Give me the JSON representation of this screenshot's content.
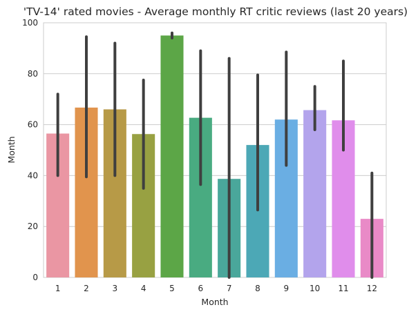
{
  "chart_data": {
    "type": "bar",
    "title": "'TV-14' rated movies - Average monthly RT critic reviews (last 20 years)",
    "xlabel": "Month",
    "ylabel": "Month",
    "ylim": [
      0,
      100
    ],
    "yticks": [
      "0",
      "20",
      "40",
      "60",
      "80",
      "100"
    ],
    "grid": true,
    "categories": [
      "1",
      "2",
      "3",
      "4",
      "5",
      "6",
      "7",
      "8",
      "9",
      "10",
      "11",
      "12"
    ],
    "values": [
      56.5,
      66.7,
      66.0,
      56.3,
      95.0,
      62.7,
      38.7,
      52.0,
      62.0,
      65.7,
      61.7,
      23.0
    ],
    "error_low": [
      40.0,
      39.5,
      40.0,
      35.0,
      94.0,
      36.5,
      0.0,
      26.5,
      44.0,
      58.0,
      50.0,
      0.0
    ],
    "error_high": [
      72.0,
      94.5,
      92.0,
      77.5,
      96.0,
      89.0,
      86.0,
      79.5,
      88.5,
      75.0,
      85.0,
      41.0
    ],
    "colors": [
      "#ea96a3",
      "#e1944d",
      "#b79a47",
      "#98a142",
      "#5ca647",
      "#49ab81",
      "#4aa79b",
      "#4ca8b6",
      "#6aaee3",
      "#b3a4ec",
      "#e08deb",
      "#e98ac7"
    ],
    "error_color": "#3f3f3f"
  }
}
